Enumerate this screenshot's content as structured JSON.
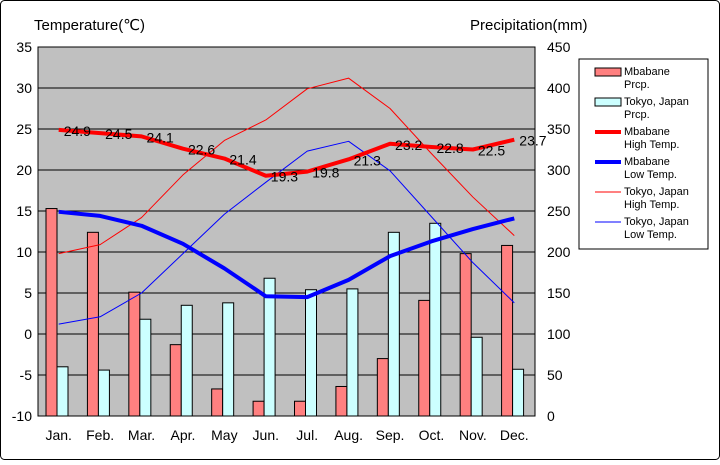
{
  "chart_data": {
    "type": "bar+line",
    "left_axis_title": "Temperature(℃)",
    "right_axis_title": "Precipitation(mm)",
    "categories": [
      "Jan.",
      "Feb.",
      "Mar.",
      "Apr.",
      "May",
      "Jun.",
      "Jul.",
      "Aug.",
      "Sep.",
      "Oct.",
      "Nov.",
      "Dec."
    ],
    "left_ylim": [
      -10,
      35
    ],
    "left_ticks": [
      -10,
      -5,
      0,
      5,
      10,
      15,
      20,
      25,
      30,
      35
    ],
    "right_ylim": [
      0,
      450
    ],
    "right_ticks": [
      0,
      50,
      100,
      150,
      200,
      250,
      300,
      350,
      400,
      450
    ],
    "grid": true,
    "plot_background": "#c0c0c0",
    "series": [
      {
        "name": "Mbabane Prcp.",
        "legend": [
          "Mbabane",
          "Prcp."
        ],
        "kind": "bar",
        "axis": "right",
        "color": "#ff8080",
        "values": [
          253,
          224,
          151,
          87,
          33,
          18,
          18,
          36,
          70,
          141,
          198,
          208
        ]
      },
      {
        "name": "Tokyo, Japan Prcp.",
        "legend": [
          "Tokyo, Japan",
          "Prcp."
        ],
        "kind": "bar",
        "axis": "right",
        "color": "#ccffff",
        "values": [
          60,
          56,
          118,
          135,
          138,
          168,
          154,
          155,
          224,
          235,
          96,
          57
        ]
      },
      {
        "name": "Mbabane High Temp.",
        "legend": [
          "Mbabane",
          "High Temp."
        ],
        "kind": "line",
        "axis": "left",
        "color": "#ff0000",
        "width": 4,
        "values": [
          24.9,
          24.5,
          24.1,
          22.6,
          21.4,
          19.3,
          19.8,
          21.3,
          23.2,
          22.8,
          22.5,
          23.7
        ],
        "labels": [
          "24.9",
          "24.5",
          "24.1",
          "22.6",
          "21.4",
          "19.3",
          "19.8",
          "21.3",
          "23.2",
          "22.8",
          "22.5",
          "23.7"
        ]
      },
      {
        "name": "Mbabane Low Temp.",
        "legend": [
          "Mbabane",
          "Low Temp."
        ],
        "kind": "line",
        "axis": "left",
        "color": "#0000ff",
        "width": 4,
        "values": [
          14.9,
          14.4,
          13.2,
          11.0,
          8.0,
          4.6,
          4.5,
          6.6,
          9.5,
          11.3,
          12.8,
          14.1
        ]
      },
      {
        "name": "Tokyo, Japan High Temp.",
        "legend": [
          "Tokyo, Japan",
          "High Temp."
        ],
        "kind": "line",
        "axis": "left",
        "color": "#ff0000",
        "width": 1,
        "values": [
          9.8,
          10.9,
          14.2,
          19.4,
          23.6,
          26.1,
          29.9,
          31.2,
          27.5,
          22.0,
          16.7,
          12.0
        ]
      },
      {
        "name": "Tokyo, Japan Low Temp.",
        "legend": [
          "Tokyo, Japan",
          "Low Temp."
        ],
        "kind": "line",
        "axis": "left",
        "color": "#0000ff",
        "width": 1,
        "values": [
          1.2,
          2.1,
          5.0,
          9.8,
          14.6,
          18.5,
          22.3,
          23.5,
          19.9,
          14.3,
          8.7,
          3.8
        ]
      }
    ]
  }
}
